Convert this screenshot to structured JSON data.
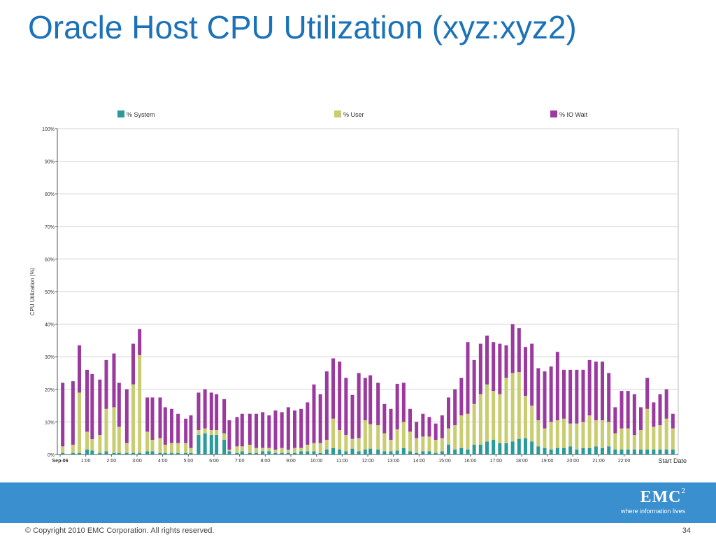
{
  "slide": {
    "title": "Oracle Host CPU Utilization (xyz:xyz2)",
    "copyright": "© Copyright 2010  EMC Corporation.  All rights reserved.",
    "page_number": "34"
  },
  "logo": {
    "mark": "EMC",
    "sup": "2",
    "tagline": "where information lives"
  },
  "colors": {
    "title": "#1b72b8",
    "band": "#3a8fcf",
    "system": "#2b9a9a",
    "user": "#c9cd72",
    "io_wait": "#9b3a9e",
    "grid": "#d0d0d0"
  },
  "chart_data": {
    "type": "bar",
    "stacked": true,
    "ylabel": "CPU Utilization (%)",
    "xlabel": "Start Date",
    "ylim": [
      0,
      100
    ],
    "y_ticks": [
      "0%",
      "10%",
      "20%",
      "30%",
      "40%",
      "50%",
      "60%",
      "70%",
      "80%",
      "90%",
      "100%"
    ],
    "x_tick_labels": [
      "Sep-06",
      "1:00",
      "2:00",
      "3:00",
      "4:00",
      "5:00",
      "6:00",
      "7:00",
      "8:00",
      "9:00",
      "10:00",
      "11:00",
      "12:00",
      "13:00",
      "14:00",
      "15:00",
      "16:00",
      "17:00",
      "18:00",
      "19:00",
      "20:00",
      "21:00",
      "22:00"
    ],
    "x_tick_hours": [
      0,
      1,
      2,
      3,
      4,
      5,
      6,
      7,
      8,
      9,
      10,
      11,
      12,
      13,
      14,
      15,
      16,
      17,
      18,
      19,
      20,
      21,
      22
    ],
    "grid": true,
    "legend_position": "top",
    "x": [
      0.1,
      0.5,
      0.75,
      1.05,
      1.25,
      1.55,
      1.8,
      2.1,
      2.3,
      2.6,
      2.85,
      3.1,
      3.4,
      3.6,
      3.9,
      4.1,
      4.35,
      4.6,
      4.9,
      5.1,
      5.4,
      5.65,
      5.9,
      6.1,
      6.4,
      6.6,
      6.9,
      7.1,
      7.4,
      7.65,
      7.9,
      8.15,
      8.4,
      8.65,
      8.9,
      9.15,
      9.4,
      9.65,
      9.9,
      10.15,
      10.4,
      10.65,
      10.9,
      11.15,
      11.4,
      11.65,
      11.9,
      12.1,
      12.4,
      12.65,
      12.9,
      13.15,
      13.4,
      13.65,
      13.9,
      14.15,
      14.4,
      14.65,
      14.9,
      15.15,
      15.4,
      15.65,
      15.9,
      16.15,
      16.4,
      16.65,
      16.9,
      17.15,
      17.4,
      17.65,
      17.9,
      18.15,
      18.4,
      18.65,
      18.9,
      19.15,
      19.4,
      19.65,
      19.9,
      20.15,
      20.4,
      20.65,
      20.9,
      21.15,
      21.4,
      21.65,
      21.9,
      22.15,
      22.4,
      22.65,
      22.9,
      23.15,
      23.4,
      23.65,
      23.9
    ],
    "series": [
      {
        "name": "% System",
        "values": [
          0.5,
          0.5,
          0.5,
          1.5,
          1.2,
          0.5,
          1,
          0.5,
          0.5,
          0.5,
          0.5,
          0.5,
          1,
          1,
          0.5,
          0.5,
          0.5,
          0.5,
          0.5,
          0.5,
          6,
          6.5,
          6,
          6,
          4.5,
          1,
          0.5,
          1,
          0.5,
          0.5,
          1,
          1,
          0.5,
          0.5,
          0.5,
          0.5,
          1,
          1,
          1,
          0.5,
          1.5,
          2,
          1.5,
          1,
          1.8,
          1,
          1.5,
          1.8,
          1.5,
          1,
          1,
          1.2,
          2,
          1,
          0.5,
          1,
          1,
          0.5,
          1,
          3,
          1.5,
          2,
          1.5,
          3,
          3,
          4,
          4.5,
          3.5,
          3.5,
          4,
          4.8,
          5,
          4,
          2.5,
          2,
          1.5,
          2,
          2,
          2.5,
          1.5,
          2,
          2,
          2.5,
          2,
          2.5,
          1.5,
          1.5,
          1.5,
          1.5,
          1.5,
          1.5,
          1.5,
          1.5,
          1.5,
          1.5
        ]
      },
      {
        "name": "% User",
        "values": [
          2,
          2.5,
          18.5,
          5.5,
          3.5,
          5.5,
          13,
          14,
          8,
          3,
          21,
          30,
          6,
          3.5,
          4.5,
          2.5,
          3,
          3,
          3,
          1.5,
          1.5,
          1.5,
          1.5,
          1.5,
          2,
          0.5,
          2,
          1.5,
          2.5,
          1.5,
          1,
          1,
          1,
          1.5,
          1,
          1.5,
          1,
          2,
          2.5,
          3,
          3,
          9,
          6,
          5,
          3,
          4,
          9,
          7.5,
          7.5,
          5.5,
          3.5,
          6.5,
          8,
          6,
          4.5,
          4.5,
          4.5,
          4,
          4,
          5,
          7.5,
          10,
          11,
          12.5,
          15.5,
          17.5,
          15,
          15,
          20,
          21,
          20.5,
          13,
          11,
          8,
          6,
          8.5,
          8.5,
          9,
          7,
          8,
          8,
          10,
          8,
          8.5,
          7.5,
          5,
          6.5,
          6.5,
          4.5,
          6,
          12.5,
          7,
          7.5,
          9.5,
          6.5
        ]
      },
      {
        "name": "% IO Wait",
        "values": [
          19.5,
          19.5,
          14.5,
          19,
          20,
          17,
          15,
          16.5,
          13.5,
          16.5,
          12.5,
          8,
          10.5,
          13,
          12.5,
          11.5,
          10.5,
          9,
          7.5,
          10,
          11.5,
          12,
          11.5,
          11,
          10.5,
          9,
          9,
          10,
          9.5,
          10.5,
          11,
          10,
          12,
          11,
          13,
          11.5,
          12,
          13,
          18,
          15,
          21,
          18.5,
          21,
          17.5,
          13.5,
          20,
          13,
          15,
          13,
          9,
          9.5,
          14,
          12,
          7,
          5,
          7,
          6,
          5,
          7,
          9.5,
          11,
          11.5,
          22,
          13.5,
          15.5,
          15,
          15,
          15.5,
          10,
          15,
          13.5,
          15,
          19,
          16,
          17.5,
          17,
          21,
          15,
          16.5,
          16.5,
          16,
          17,
          18,
          18,
          15,
          8,
          11.5,
          11.5,
          12.5,
          7,
          9.5,
          7.5,
          9.5,
          9,
          4.5
        ]
      }
    ]
  }
}
